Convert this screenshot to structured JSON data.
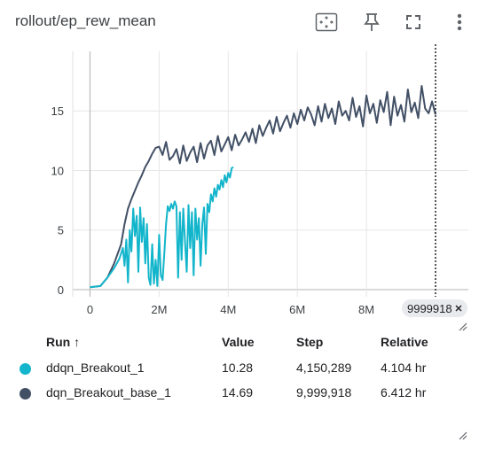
{
  "header": {
    "title": "rollout/ep_rew_mean",
    "icons": [
      "fit-domain-icon",
      "pin-icon",
      "fullscreen-icon",
      "more-vert-icon"
    ]
  },
  "chart_data": {
    "type": "line",
    "xlim": [
      -500000,
      10950000
    ],
    "ylim": [
      -0.6,
      20
    ],
    "x_ticks": [
      0,
      2000000,
      4000000,
      6000000,
      8000000
    ],
    "x_tick_labels": [
      "0",
      "2M",
      "4M",
      "6M",
      "8M"
    ],
    "y_ticks": [
      0,
      5,
      10,
      15
    ],
    "y_tick_labels": [
      "0",
      "5",
      "10",
      "15"
    ],
    "grid": true,
    "hover_step": 9999918,
    "hover_label": "9999918",
    "series": [
      {
        "name": "dqn_Breakout_base_1",
        "color": "#425066",
        "x": [
          0,
          300000,
          500000,
          700000,
          900000,
          1000000,
          1100000,
          1200000,
          1300000,
          1400000,
          1500000,
          1600000,
          1700000,
          1800000,
          1900000,
          2000000,
          2100000,
          2200000,
          2300000,
          2400000,
          2500000,
          2600000,
          2700000,
          2800000,
          2900000,
          3000000,
          3100000,
          3200000,
          3300000,
          3400000,
          3500000,
          3600000,
          3700000,
          3800000,
          3900000,
          4000000,
          4100000,
          4200000,
          4300000,
          4400000,
          4500000,
          4600000,
          4700000,
          4800000,
          4900000,
          5000000,
          5100000,
          5200000,
          5300000,
          5400000,
          5500000,
          5600000,
          5700000,
          5800000,
          5900000,
          6000000,
          6100000,
          6200000,
          6300000,
          6400000,
          6500000,
          6600000,
          6700000,
          6800000,
          6900000,
          7000000,
          7100000,
          7200000,
          7300000,
          7400000,
          7500000,
          7600000,
          7700000,
          7800000,
          7900000,
          8000000,
          8100000,
          8200000,
          8300000,
          8400000,
          8500000,
          8600000,
          8700000,
          8800000,
          8900000,
          9000000,
          9100000,
          9200000,
          9300000,
          9400000,
          9500000,
          9600000,
          9700000,
          9800000,
          9900000,
          9999918
        ],
        "y": [
          0.2,
          0.3,
          1.0,
          2.2,
          3.8,
          5.5,
          6.8,
          7.6,
          8.3,
          9.0,
          9.6,
          10.3,
          10.8,
          11.4,
          11.9,
          12.0,
          11.3,
          12.4,
          10.9,
          11.2,
          11.8,
          10.6,
          12.1,
          10.8,
          11.5,
          12.0,
          10.7,
          12.3,
          11.0,
          12.1,
          12.5,
          11.3,
          12.9,
          11.6,
          12.2,
          12.8,
          11.7,
          13.0,
          12.1,
          12.6,
          13.2,
          12.4,
          13.5,
          12.3,
          13.8,
          12.9,
          13.6,
          14.2,
          13.1,
          14.5,
          13.3,
          14.0,
          14.6,
          13.6,
          14.8,
          13.9,
          15.1,
          14.2,
          15.3,
          14.7,
          13.8,
          15.4,
          14.1,
          15.6,
          14.4,
          15.2,
          13.9,
          15.8,
          14.6,
          15.0,
          14.2,
          16.1,
          14.5,
          15.4,
          13.7,
          16.3,
          14.8,
          15.6,
          14.0,
          15.9,
          14.9,
          16.6,
          13.8,
          16.2,
          14.6,
          15.5,
          14.1,
          16.8,
          14.9,
          15.7,
          14.4,
          17.1,
          15.2,
          14.8,
          15.8,
          14.69
        ]
      },
      {
        "name": "ddqn_Breakout_1",
        "color": "#12b5cb",
        "x": [
          0,
          300000,
          500000,
          700000,
          850000,
          950000,
          1000000,
          1050000,
          1100000,
          1150000,
          1200000,
          1250000,
          1300000,
          1350000,
          1400000,
          1450000,
          1500000,
          1550000,
          1600000,
          1650000,
          1700000,
          1750000,
          1800000,
          1850000,
          1900000,
          1950000,
          2000000,
          2050000,
          2100000,
          2150000,
          2200000,
          2250000,
          2300000,
          2350000,
          2400000,
          2450000,
          2500000,
          2550000,
          2600000,
          2650000,
          2700000,
          2750000,
          2800000,
          2850000,
          2900000,
          2950000,
          3000000,
          3050000,
          3100000,
          3150000,
          3200000,
          3250000,
          3300000,
          3350000,
          3400000,
          3450000,
          3500000,
          3550000,
          3600000,
          3650000,
          3700000,
          3750000,
          3800000,
          3850000,
          3900000,
          3950000,
          4000000,
          4050000,
          4100000,
          4150289
        ],
        "y": [
          0.2,
          0.3,
          1.0,
          1.8,
          2.6,
          3.5,
          2.0,
          4.2,
          0.6,
          5.0,
          3.2,
          6.8,
          4.5,
          6.2,
          1.5,
          6.9,
          4.0,
          6.0,
          2.2,
          5.5,
          1.0,
          0.4,
          3.8,
          0.5,
          2.5,
          0.3,
          4.6,
          1.2,
          0.8,
          3.0,
          5.5,
          7.0,
          6.6,
          7.2,
          6.8,
          7.4,
          7.0,
          1.0,
          6.5,
          2.5,
          6.8,
          4.0,
          1.5,
          7.1,
          3.5,
          6.5,
          1.2,
          6.8,
          4.2,
          6.0,
          2.0,
          5.5,
          6.9,
          3.0,
          7.2,
          6.5,
          8.0,
          7.4,
          8.5,
          7.8,
          8.8,
          8.4,
          9.2,
          8.6,
          9.6,
          9.0,
          9.8,
          9.4,
          10.2,
          10.28
        ]
      }
    ]
  },
  "runs": {
    "headers": {
      "run": "Run ↑",
      "value": "Value",
      "step": "Step",
      "relative": "Relative"
    },
    "rows": [
      {
        "name": "ddqn_Breakout_1",
        "color": "#12b5cb",
        "value": "10.28",
        "step": "4,150,289",
        "relative": "4.104 hr"
      },
      {
        "name": "dqn_Breakout_base_1",
        "color": "#425066",
        "value": "14.69",
        "step": "9,999,918",
        "relative": "6.412 hr"
      }
    ]
  }
}
